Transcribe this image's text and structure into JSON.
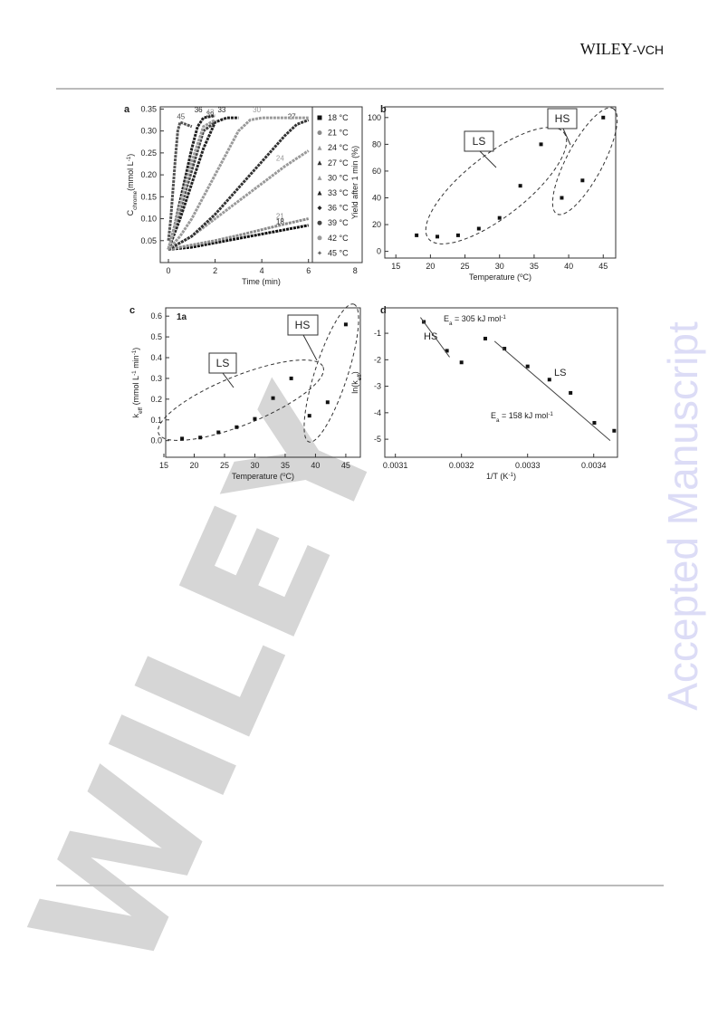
{
  "header": {
    "publisher": [
      "WILEY",
      "-VCH"
    ]
  },
  "watermark": "Accepted Manuscript",
  "logo_watermark": "WILEY",
  "chart_data": [
    {
      "panel": "a",
      "type": "line",
      "xlabel": "Time (min)",
      "ylabel": [
        "C",
        {
          "text": "chrome",
          "shift": "sub"
        },
        "(mmol L",
        {
          "text": "-1",
          "shift": "super"
        },
        ")"
      ],
      "xlim": [
        -0.35,
        8.3
      ],
      "ylim": [
        0.0,
        0.355
      ],
      "xticks": [
        0,
        2,
        4,
        6,
        8
      ],
      "yticks": [
        0.05,
        {
          "value": 0.1,
          "label": "0.10"
        },
        0.15,
        {
          "value": 0.2,
          "label": "0.20"
        },
        0.25,
        {
          "value": 0.3,
          "label": "0.30"
        },
        0.35
      ],
      "legend": "right",
      "series": [
        {
          "name": "18 °C",
          "label": "18",
          "color": "#111111",
          "marker": "square",
          "x": [
            0,
            1,
            2,
            3,
            4,
            5,
            6
          ],
          "values": [
            0.03,
            0.035,
            0.045,
            0.055,
            0.065,
            0.075,
            0.085
          ]
        },
        {
          "name": "21 °C",
          "label": "21",
          "color": "#8a8a8a",
          "marker": "circle",
          "x": [
            0,
            1,
            2,
            3,
            4,
            5,
            6
          ],
          "values": [
            0.03,
            0.04,
            0.05,
            0.062,
            0.075,
            0.088,
            0.1
          ]
        },
        {
          "name": "24 °C",
          "label": "24",
          "color": "#9a9a9a",
          "marker": "triangle",
          "x": [
            0,
            1,
            2,
            3,
            4,
            5,
            6
          ],
          "values": [
            0.03,
            0.06,
            0.1,
            0.14,
            0.18,
            0.22,
            0.255
          ]
        },
        {
          "name": "27 °C",
          "label": "27",
          "color": "#333333",
          "marker": "triangle",
          "x": [
            0,
            1,
            2,
            3,
            4,
            5,
            5.5,
            6
          ],
          "values": [
            0.03,
            0.06,
            0.11,
            0.17,
            0.23,
            0.29,
            0.315,
            0.325
          ]
        },
        {
          "name": "30 °C",
          "label": "30",
          "color": "#9a9a9a",
          "marker": "triangle",
          "x": [
            0,
            0.5,
            1,
            1.5,
            2,
            2.5,
            3,
            3.5,
            4,
            5,
            6
          ],
          "values": [
            0.03,
            0.06,
            0.1,
            0.15,
            0.2,
            0.25,
            0.3,
            0.325,
            0.33,
            0.33,
            0.33
          ]
        },
        {
          "name": "33 °C",
          "label": "33",
          "color": "#222222",
          "marker": "triangle",
          "x": [
            0,
            0.5,
            1,
            1.5,
            2,
            2.5,
            3
          ],
          "values": [
            0.03,
            0.1,
            0.18,
            0.26,
            0.32,
            0.33,
            0.33
          ]
        },
        {
          "name": "36 °C",
          "label": "36",
          "color": "#222222",
          "marker": "diamond",
          "x": [
            0,
            0.25,
            0.5,
            0.75,
            1,
            1.25,
            1.5,
            2
          ],
          "values": [
            0.03,
            0.08,
            0.14,
            0.2,
            0.26,
            0.31,
            0.33,
            0.335
          ]
        },
        {
          "name": "39 °C",
          "label": "39",
          "color": "#444444",
          "marker": "circle",
          "x": [
            0,
            0.5,
            1,
            1.5,
            2
          ],
          "values": [
            0.03,
            0.12,
            0.21,
            0.3,
            0.32
          ]
        },
        {
          "name": "42 °C",
          "label": "42",
          "color": "#9a9a9a",
          "marker": "circle",
          "x": [
            0,
            0.5,
            1,
            1.5,
            2
          ],
          "values": [
            0.03,
            0.13,
            0.23,
            0.31,
            0.325
          ]
        },
        {
          "name": "45 °C",
          "label": "45",
          "color": "#555555",
          "marker": "star",
          "x": [
            0,
            0.1,
            0.2,
            0.3,
            0.4,
            0.5,
            0.75,
            1
          ],
          "values": [
            0.05,
            0.1,
            0.17,
            0.24,
            0.3,
            0.32,
            0.315,
            0.31
          ]
        }
      ]
    },
    {
      "panel": "b",
      "type": "scatter",
      "xlabel": [
        "Temperature (",
        {
          "text": "o",
          "shift": "super"
        },
        "C)"
      ],
      "ylabel": "Yield after 1 min (%)",
      "xlim": [
        13.4,
        46.8
      ],
      "ylim": [
        -5,
        108
      ],
      "xticks": [
        15,
        20,
        25,
        30,
        35,
        40,
        45
      ],
      "yticks": [
        0,
        20,
        40,
        60,
        80,
        100
      ],
      "color": "#111111",
      "annotations": [
        "LS",
        "HS"
      ],
      "x": [
        18,
        21,
        24,
        27,
        30,
        33,
        36,
        39,
        42,
        45
      ],
      "values": [
        12,
        11,
        12,
        17,
        25,
        49,
        80,
        40,
        53,
        100
      ]
    },
    {
      "panel": "c",
      "type": "scatter",
      "xlabel": [
        "Temperature (",
        {
          "text": "o",
          "shift": "super"
        },
        "C)"
      ],
      "ylabel": [
        "k",
        {
          "text": "eff",
          "shift": "sub"
        },
        " (mmol L",
        {
          "text": "-1",
          "shift": "super"
        },
        " min",
        {
          "text": "-1",
          "shift": "super"
        },
        ")"
      ],
      "xlim": [
        15.3,
        47.4
      ],
      "ylim": [
        -0.08,
        0.64
      ],
      "xticks": [
        15,
        20,
        25,
        30,
        35,
        40,
        45
      ],
      "yticks": [
        {
          "value": 0,
          "label": "0.0"
        },
        0.1,
        0.2,
        0.3,
        0.4,
        0.5,
        0.6
      ],
      "color": "#111111",
      "annotations": [
        "1a",
        "LS",
        "HS"
      ],
      "x": [
        18,
        21,
        24,
        27,
        30,
        33,
        36,
        39,
        42,
        45
      ],
      "values": [
        0.01,
        0.015,
        0.04,
        0.065,
        0.105,
        0.205,
        0.3,
        0.12,
        0.185,
        0.56
      ]
    },
    {
      "panel": "d",
      "type": "scatter",
      "xlabel": [
        "1/T (K",
        {
          "text": "-1",
          "shift": "super"
        },
        ")"
      ],
      "ylabel": [
        "ln(k",
        {
          "text": "eff",
          "shift": "sub"
        },
        ")"
      ],
      "xlim": [
        0.003084,
        0.003436
      ],
      "ylim": [
        -5.68,
        -0.04
      ],
      "xticks": [
        0.0031,
        0.0032,
        0.0033,
        0.0034
      ],
      "yticks": [
        -1,
        -2,
        -3,
        -4,
        -5
      ],
      "color": "#111111",
      "annotations": [
        [
          "E",
          {
            "text": "a",
            "shift": "sub"
          },
          " = 305 kJ mol",
          {
            "text": "-1",
            "shift": "super"
          }
        ],
        "HS",
        "LS",
        [
          "E",
          {
            "text": "a",
            "shift": "sub"
          },
          " = 158 kJ mol",
          {
            "text": "-1",
            "shift": "super"
          }
        ]
      ],
      "x": [
        0.003143,
        0.003178,
        0.0032,
        0.003236,
        0.003265,
        0.0033,
        0.003333,
        0.003365,
        0.003401,
        0.003431
      ],
      "values": [
        -0.57,
        -1.66,
        -2.1,
        -1.2,
        -1.58,
        -2.25,
        -2.75,
        -3.25,
        -4.38,
        -4.68
      ],
      "series": [
        {
          "style": "line",
          "color": "#444444",
          "x": [
            0.003138,
            0.003182
          ],
          "values": [
            -0.4,
            -1.9
          ]
        },
        {
          "style": "line",
          "color": "#444444",
          "x": [
            0.00325,
            0.003425
          ],
          "values": [
            -1.3,
            -5.05
          ]
        }
      ]
    }
  ]
}
